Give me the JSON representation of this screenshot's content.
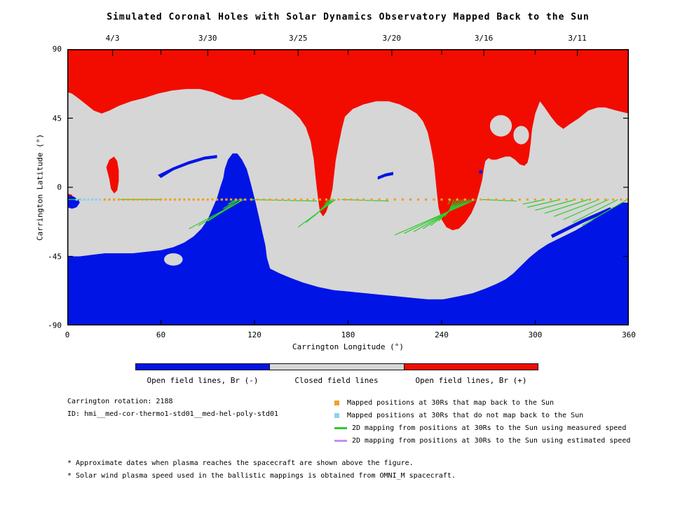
{
  "chart_data": {
    "type": "map",
    "title": "Simulated Coronal Holes with Solar Dynamics Observatory Mapped Back to the Sun",
    "xlabel": "Carrington Longitude (°)",
    "ylabel": "Carrington Latitude (°)",
    "xlim": [
      0,
      360
    ],
    "ylim": [
      -90,
      90
    ],
    "xticks": [
      0,
      60,
      120,
      180,
      240,
      300,
      360
    ],
    "yticks": [
      90,
      45,
      0,
      -45,
      -90
    ],
    "top_dates": [
      {
        "label": "4/3",
        "lon": 29
      },
      {
        "label": "3/30",
        "lon": 90
      },
      {
        "label": "3/25",
        "lon": 148
      },
      {
        "label": "3/20",
        "lon": 208
      },
      {
        "label": "3/16",
        "lon": 267
      },
      {
        "label": "3/11",
        "lon": 327
      }
    ],
    "regions": {
      "red_main": [
        [
          0,
          90
        ],
        [
          360,
          90
        ],
        [
          360,
          48
        ],
        [
          352,
          50
        ],
        [
          345,
          52
        ],
        [
          340,
          52
        ],
        [
          334,
          50
        ],
        [
          328,
          45
        ],
        [
          322,
          41
        ],
        [
          318,
          38
        ],
        [
          314,
          41
        ],
        [
          310,
          46
        ],
        [
          306,
          52
        ],
        [
          303,
          56
        ],
        [
          300,
          48
        ],
        [
          298,
          38
        ],
        [
          297,
          28
        ],
        [
          296,
          20
        ],
        [
          295,
          16
        ],
        [
          293,
          14
        ],
        [
          290,
          15
        ],
        [
          287,
          18
        ],
        [
          284,
          20
        ],
        [
          281,
          20
        ],
        [
          278,
          19
        ],
        [
          275,
          18
        ],
        [
          272,
          18
        ],
        [
          270,
          19
        ],
        [
          268,
          17
        ],
        [
          267,
          12
        ],
        [
          266,
          5
        ],
        [
          264,
          -3
        ],
        [
          262,
          -10
        ],
        [
          259,
          -17
        ],
        [
          255,
          -23
        ],
        [
          251,
          -27
        ],
        [
          247,
          -28
        ],
        [
          243,
          -26
        ],
        [
          240,
          -21
        ],
        [
          238,
          -13
        ],
        [
          237,
          -4
        ],
        [
          236,
          6
        ],
        [
          235,
          16
        ],
        [
          233,
          27
        ],
        [
          231,
          36
        ],
        [
          228,
          43
        ],
        [
          224,
          48
        ],
        [
          219,
          51
        ],
        [
          213,
          54
        ],
        [
          206,
          56
        ],
        [
          198,
          56
        ],
        [
          190,
          54
        ],
        [
          183,
          51
        ],
        [
          178,
          46
        ],
        [
          176,
          38
        ],
        [
          174,
          28
        ],
        [
          172,
          17
        ],
        [
          171,
          8
        ],
        [
          170,
          -1
        ],
        [
          168,
          -10
        ],
        [
          166,
          -16
        ],
        [
          164,
          -19
        ],
        [
          162,
          -16
        ],
        [
          161,
          -9
        ],
        [
          160,
          -1
        ],
        [
          159,
          8
        ],
        [
          158,
          18
        ],
        [
          156,
          30
        ],
        [
          153,
          39
        ],
        [
          149,
          45
        ],
        [
          144,
          50
        ],
        [
          138,
          54
        ],
        [
          131,
          58
        ],
        [
          125,
          61
        ],
        [
          118,
          59
        ],
        [
          112,
          57
        ],
        [
          106,
          57
        ],
        [
          100,
          59
        ],
        [
          93,
          62
        ],
        [
          85,
          64
        ],
        [
          76,
          64
        ],
        [
          67,
          63
        ],
        [
          58,
          61
        ],
        [
          49,
          58
        ],
        [
          41,
          56
        ],
        [
          33,
          53
        ],
        [
          27,
          50
        ],
        [
          22,
          48
        ],
        [
          17,
          50
        ],
        [
          12,
          54
        ],
        [
          7,
          58
        ],
        [
          3,
          61
        ],
        [
          0,
          62
        ]
      ],
      "red_patches": [
        [
          [
            25,
            13
          ],
          [
            27,
            18
          ],
          [
            30,
            20
          ],
          [
            32,
            17
          ],
          [
            33,
            11
          ],
          [
            33,
            4
          ],
          [
            32,
            -2
          ],
          [
            30,
            -4
          ],
          [
            28,
            -1
          ],
          [
            27,
            5
          ],
          [
            26,
            9
          ]
        ],
        [
          [
            0,
            -4
          ],
          [
            3,
            -5
          ],
          [
            4,
            -8
          ],
          [
            3,
            -11
          ],
          [
            0,
            -12
          ]
        ]
      ],
      "blue_main": [
        [
          0,
          -90
        ],
        [
          360,
          -90
        ],
        [
          360,
          -10
        ],
        [
          356,
          -10
        ],
        [
          352,
          -12
        ],
        [
          348,
          -14
        ],
        [
          344,
          -16
        ],
        [
          340,
          -19
        ],
        [
          336,
          -22
        ],
        [
          331,
          -25
        ],
        [
          326,
          -28
        ],
        [
          320,
          -31
        ],
        [
          314,
          -34
        ],
        [
          308,
          -37
        ],
        [
          302,
          -41
        ],
        [
          296,
          -46
        ],
        [
          291,
          -51
        ],
        [
          286,
          -56
        ],
        [
          281,
          -60
        ],
        [
          275,
          -63
        ],
        [
          268,
          -66
        ],
        [
          260,
          -69
        ],
        [
          251,
          -71
        ],
        [
          241,
          -73
        ],
        [
          231,
          -73
        ],
        [
          221,
          -72
        ],
        [
          211,
          -71
        ],
        [
          201,
          -70
        ],
        [
          191,
          -69
        ],
        [
          181,
          -68
        ],
        [
          171,
          -67
        ],
        [
          161,
          -65
        ],
        [
          151,
          -62
        ],
        [
          143,
          -59
        ],
        [
          136,
          -56
        ],
        [
          130,
          -53
        ],
        [
          128,
          -46
        ],
        [
          127,
          -38
        ],
        [
          125,
          -29
        ],
        [
          123,
          -20
        ],
        [
          121,
          -11
        ],
        [
          119,
          -3
        ],
        [
          117,
          5
        ],
        [
          115,
          12
        ],
        [
          112,
          18
        ],
        [
          109,
          22
        ],
        [
          106,
          22
        ],
        [
          103,
          18
        ],
        [
          101,
          12
        ],
        [
          100,
          6
        ],
        [
          98,
          0
        ],
        [
          96,
          -7
        ],
        [
          93,
          -14
        ],
        [
          90,
          -21
        ],
        [
          86,
          -27
        ],
        [
          81,
          -32
        ],
        [
          75,
          -36
        ],
        [
          68,
          -39
        ],
        [
          60,
          -41
        ],
        [
          51,
          -42
        ],
        [
          42,
          -43
        ],
        [
          33,
          -43
        ],
        [
          24,
          -43
        ],
        [
          16,
          -44
        ],
        [
          8,
          -45
        ],
        [
          0,
          -45
        ]
      ],
      "blue_patches": [
        [
          [
            58,
            8
          ],
          [
            68,
            13
          ],
          [
            78,
            17
          ],
          [
            88,
            20
          ],
          [
            96,
            21
          ],
          [
            96,
            19
          ],
          [
            88,
            18
          ],
          [
            78,
            15
          ],
          [
            68,
            11
          ],
          [
            60,
            6
          ]
        ],
        [
          [
            199,
            7
          ],
          [
            204,
            9
          ],
          [
            209,
            10
          ],
          [
            209,
            8
          ],
          [
            204,
            7
          ],
          [
            199,
            5
          ]
        ],
        [
          [
            0,
            -5
          ],
          [
            4,
            -6
          ],
          [
            7,
            -8
          ],
          [
            8,
            -10
          ],
          [
            6,
            -13
          ],
          [
            3,
            -14
          ],
          [
            0,
            -13
          ]
        ],
        [
          [
            264,
            9
          ],
          [
            266,
            9
          ],
          [
            266,
            11
          ],
          [
            264,
            11
          ]
        ],
        [
          [
            310,
            -31
          ],
          [
            330,
            -21
          ],
          [
            348,
            -13
          ],
          [
            349,
            -15
          ],
          [
            331,
            -23
          ],
          [
            311,
            -33
          ]
        ]
      ],
      "gray_holes": [
        {
          "cx": 278,
          "cy": 40,
          "rx": 7,
          "ry": 7
        },
        {
          "cx": 291,
          "cy": 34,
          "rx": 5,
          "ry": 6
        },
        {
          "cx": 68,
          "cy": -47,
          "rx": 6,
          "ry": 4
        }
      ]
    },
    "green_segments": [
      [
        113,
        -8,
        78,
        -27
      ],
      [
        113,
        -8,
        84,
        -25
      ],
      [
        112,
        -8,
        90,
        -22
      ],
      [
        110,
        -8,
        96,
        -18
      ],
      [
        109,
        -8,
        100,
        -14
      ],
      [
        108,
        -8,
        103,
        -11
      ],
      [
        172,
        -8,
        148,
        -26
      ],
      [
        171,
        -8,
        153,
        -23
      ],
      [
        170,
        -8,
        158,
        -19
      ],
      [
        169,
        -8,
        162,
        -15
      ],
      [
        168,
        -8,
        165,
        -11
      ],
      [
        262,
        -8,
        210,
        -31
      ],
      [
        260,
        -8,
        216,
        -30
      ],
      [
        258,
        -8,
        222,
        -29
      ],
      [
        256,
        -8,
        228,
        -27
      ],
      [
        254,
        -8,
        233,
        -25
      ],
      [
        252,
        -8,
        238,
        -22
      ],
      [
        250,
        -8,
        242,
        -19
      ],
      [
        248,
        -8,
        245,
        -15
      ],
      [
        246,
        -8,
        244,
        -11
      ],
      [
        359,
        -8,
        330,
        -25
      ],
      [
        353,
        -8,
        324,
        -23
      ],
      [
        347,
        -8,
        318,
        -21
      ],
      [
        341,
        -8,
        312,
        -19
      ],
      [
        334,
        -8,
        306,
        -17
      ],
      [
        326,
        -8,
        300,
        -15
      ],
      [
        316,
        -8,
        295,
        -13
      ],
      [
        306,
        -8,
        292,
        -11
      ],
      [
        117,
        -8,
        160,
        -9
      ],
      [
        176,
        -8,
        206,
        -9
      ],
      [
        266,
        -8,
        288,
        -9
      ],
      [
        34,
        -8,
        60,
        -8
      ],
      [
        0,
        -8,
        8,
        -8
      ]
    ],
    "markers": {
      "mapped_lat": -8,
      "orange_lons": [
        24,
        27,
        30,
        33,
        36,
        39,
        42,
        45,
        48,
        51,
        54,
        57,
        60,
        63,
        66,
        69,
        72,
        75,
        78,
        81,
        84,
        87,
        90,
        93,
        96,
        99,
        102,
        105,
        108,
        111,
        114,
        118,
        122,
        126,
        130,
        134,
        138,
        142,
        146,
        150,
        154,
        158,
        162,
        166,
        170,
        174,
        178,
        182,
        186,
        190,
        195,
        200,
        205,
        210,
        215,
        220,
        225,
        230,
        235,
        240,
        245,
        250,
        255,
        260,
        265,
        270,
        275,
        280,
        285,
        290,
        295,
        300,
        305,
        310,
        315,
        320,
        325,
        330,
        335,
        340,
        345,
        350,
        355,
        359
      ],
      "cyan_lons": [
        6,
        8.5,
        11,
        13.5,
        16,
        18.5,
        21
      ]
    }
  },
  "colors": {
    "red": "#f20c00",
    "blue": "#0014e6",
    "gray": "#d6d6d6",
    "orange": "#efa02a",
    "cyan": "#8fd0ee",
    "green": "#2fca2f",
    "violet": "#cc8dee",
    "axis": "#000000",
    "background": "#ffffff"
  },
  "colorbar": {
    "segments": [
      {
        "label": "Open field lines, Br (-)",
        "color": "blue"
      },
      {
        "label": "Closed field lines",
        "color": "gray"
      },
      {
        "label": "Open field lines, Br (+)",
        "color": "red"
      }
    ]
  },
  "info": {
    "rotation": "Carrington rotation: 2188",
    "id": "ID: hmi__med-cor-thermo1-std01__med-hel-poly-std01"
  },
  "legend_items": [
    {
      "swatch": "orange",
      "shape": "square",
      "label": "Mapped positions at 30Rs that map back to the Sun"
    },
    {
      "swatch": "cyan",
      "shape": "square",
      "label": "Mapped positions at 30Rs that do not map back to the Sun"
    },
    {
      "swatch": "green",
      "shape": "line",
      "label": "2D mapping from positions at 30Rs to the Sun using measured speed"
    },
    {
      "swatch": "violet",
      "shape": "line",
      "label": "2D mapping from positions at 30Rs to the Sun using estimated speed"
    }
  ],
  "footnotes": [
    "* Approximate dates when plasma reaches the spacecraft are shown above the figure.",
    "* Solar wind plasma speed used in the ballistic mappings is obtained from OMNI_M spacecraft."
  ]
}
